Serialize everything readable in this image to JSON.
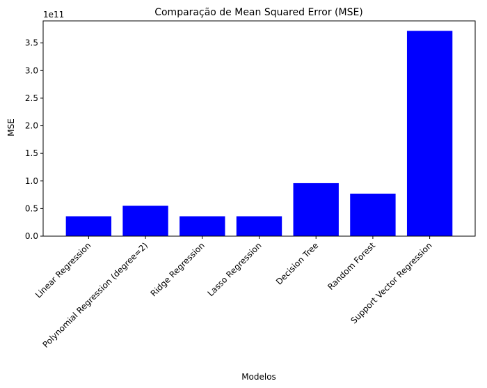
{
  "chart_data": {
    "type": "bar",
    "title": "Comparação de Mean Squared Error (MSE)",
    "xlabel": "Modelos",
    "ylabel": "MSE",
    "y_offset_label": "1e11",
    "categories": [
      "Linear Regression",
      "Polynomial Regression (degree=2)",
      "Ridge Regression",
      "Lasso Regression",
      "Decision Tree",
      "Random Forest",
      "Support Vector Regression"
    ],
    "values": [
      36000000000.0,
      55000000000.0,
      36000000000.0,
      36000000000.0,
      96000000000.0,
      77000000000.0,
      372000000000.0
    ],
    "ylim": [
      0,
      390000000000.0
    ],
    "yticks": [
      0,
      50000000000.0,
      100000000000.0,
      150000000000.0,
      200000000000.0,
      250000000000.0,
      300000000000.0,
      350000000000.0
    ],
    "ytick_labels": [
      "0.0",
      "0.5",
      "1.0",
      "1.5",
      "2.0",
      "2.5",
      "3.0",
      "3.5"
    ],
    "bar_color": "#0000ff",
    "grid": false,
    "legend": null
  }
}
